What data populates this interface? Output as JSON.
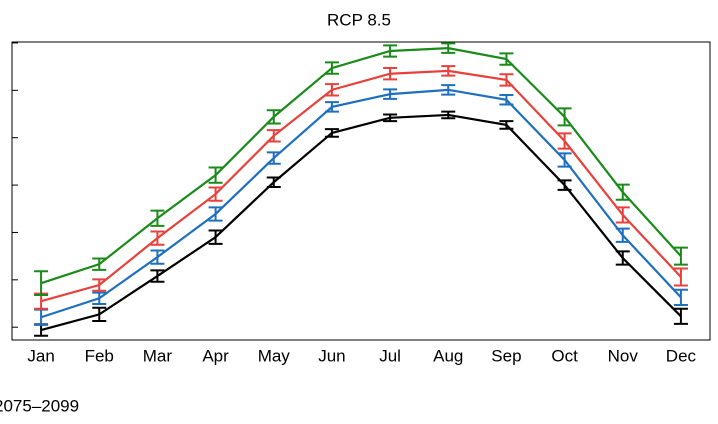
{
  "chart_data": {
    "type": "line",
    "title": "RCP 8.5",
    "footnote": "2075–2099",
    "categories": [
      "Jan",
      "Feb",
      "Mar",
      "Apr",
      "May",
      "Jun",
      "Jul",
      "Aug",
      "Sep",
      "Oct",
      "Nov",
      "Dec"
    ],
    "ylim": [
      -0.27,
      6.02
    ],
    "yticks": [
      0,
      1,
      2,
      3,
      4,
      5,
      6
    ],
    "series": [
      {
        "color": "#000000",
        "values": [
          -0.06,
          0.27,
          1.08,
          1.9,
          3.06,
          4.1,
          4.42,
          4.48,
          4.27,
          3.0,
          1.46,
          0.23
        ],
        "errors": [
          0.12,
          0.14,
          0.12,
          0.14,
          0.1,
          0.08,
          0.07,
          0.07,
          0.08,
          0.1,
          0.14,
          0.16
        ]
      },
      {
        "color": "#1f6fbf",
        "values": [
          0.21,
          0.61,
          1.48,
          2.39,
          3.57,
          4.65,
          4.92,
          5.01,
          4.8,
          3.53,
          1.94,
          0.63
        ],
        "errors": [
          0.16,
          0.12,
          0.14,
          0.14,
          0.12,
          0.1,
          0.1,
          0.1,
          0.1,
          0.14,
          0.14,
          0.16
        ]
      },
      {
        "color": "#e8413c",
        "values": [
          0.55,
          0.89,
          1.88,
          2.81,
          4.04,
          5.01,
          5.35,
          5.41,
          5.22,
          3.93,
          2.37,
          1.06
        ],
        "errors": [
          0.16,
          0.12,
          0.14,
          0.14,
          0.12,
          0.12,
          0.12,
          0.1,
          0.12,
          0.16,
          0.16,
          0.18
        ]
      },
      {
        "color": "#1a8a1a",
        "values": [
          0.93,
          1.33,
          2.3,
          3.21,
          4.44,
          5.47,
          5.83,
          5.89,
          5.66,
          4.44,
          2.85,
          1.5
        ],
        "errors": [
          0.25,
          0.12,
          0.16,
          0.16,
          0.14,
          0.12,
          0.12,
          0.1,
          0.12,
          0.18,
          0.16,
          0.18
        ]
      }
    ]
  }
}
